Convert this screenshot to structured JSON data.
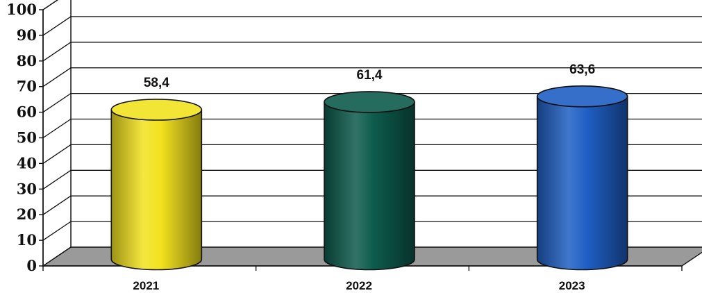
{
  "chart_data": {
    "type": "bar",
    "style": "3d-cylinder",
    "categories": [
      "2021",
      "2022",
      "2023"
    ],
    "values": [
      58.4,
      61.4,
      63.6
    ],
    "value_labels": [
      "58,4",
      "61,4",
      "63,6"
    ],
    "bar_colors": [
      "#f2e21e",
      "#0d5b4c",
      "#1f5fc4"
    ],
    "floor_color": "#9a9a9a",
    "ylim": [
      0,
      100
    ],
    "yticks": [
      "0",
      "10",
      "20",
      "30",
      "40",
      "50",
      "60",
      "70",
      "80",
      "90",
      "100"
    ],
    "grid": true,
    "legend": "none",
    "title": "",
    "xlabel": "",
    "ylabel": ""
  }
}
